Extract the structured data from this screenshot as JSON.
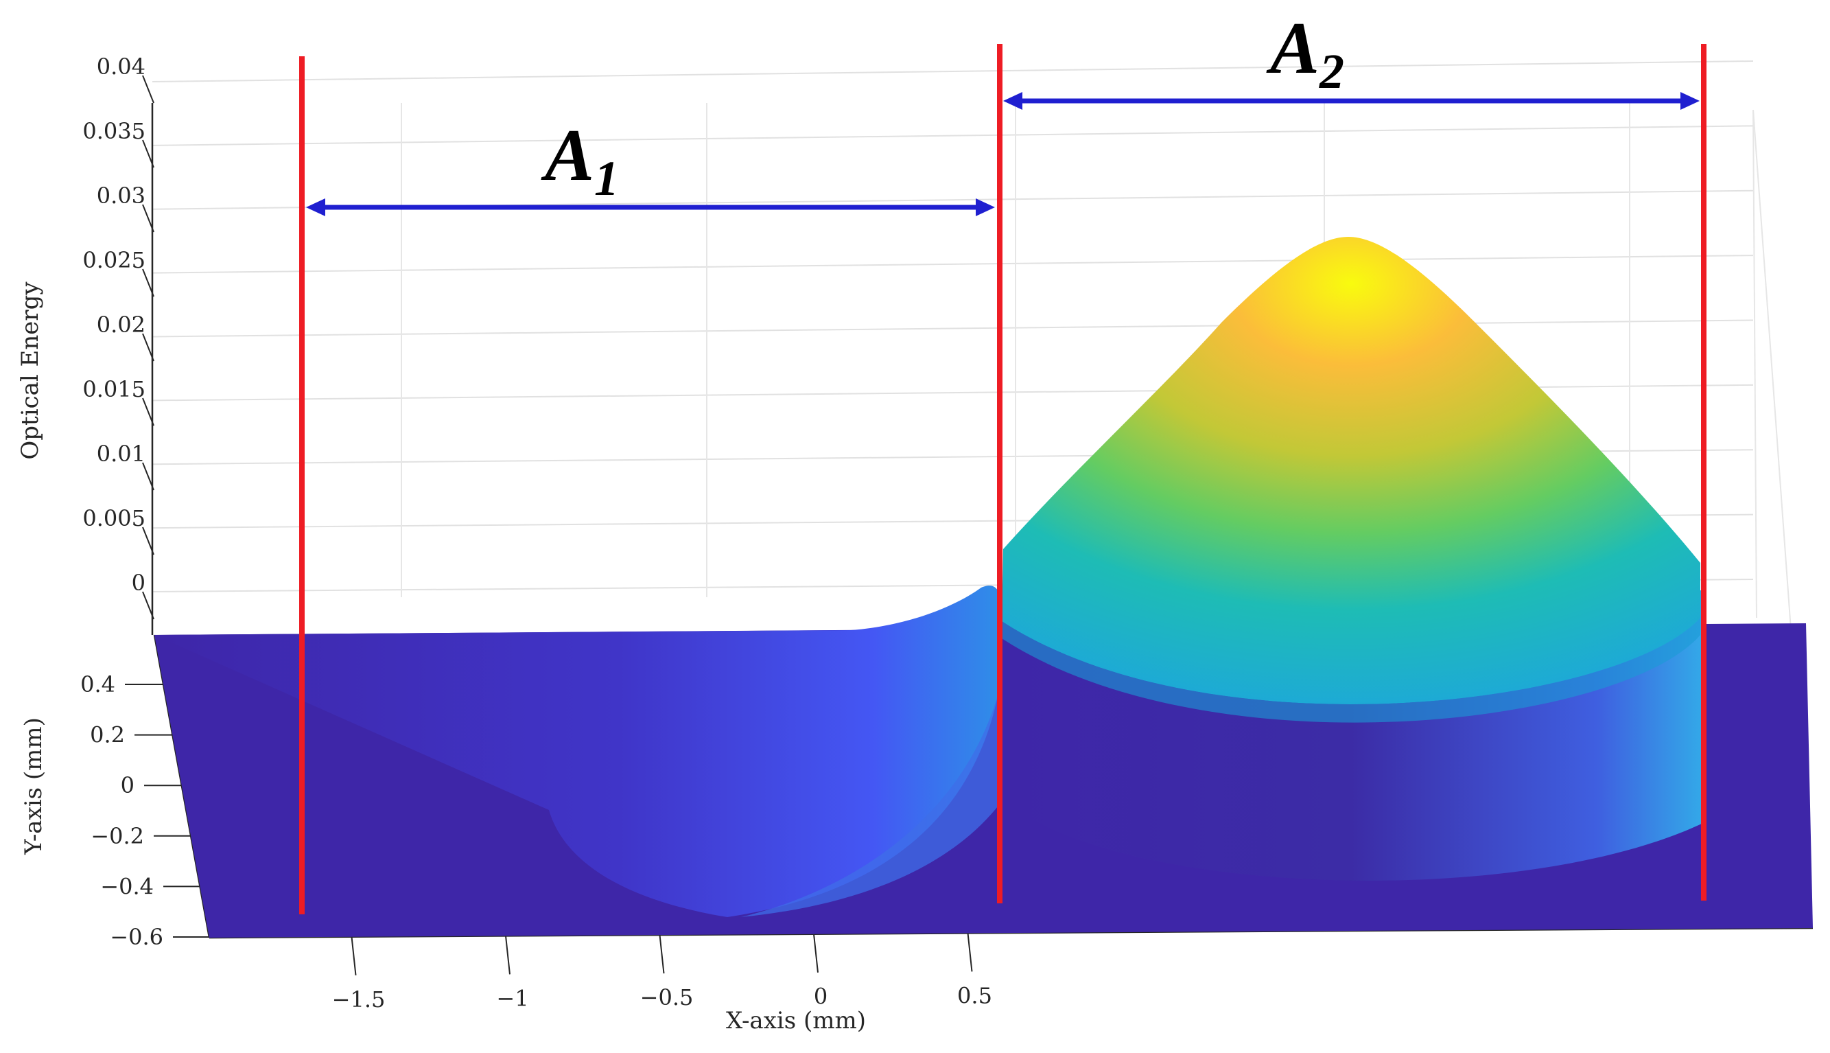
{
  "chart_data": {
    "type": "surface3d",
    "title": "",
    "xlabel": "X-axis (mm)",
    "ylabel": "Y-axis (mm)",
    "zlabel": "Optical Energy",
    "x_ticks": [
      -1.5,
      -1,
      -0.5,
      0,
      0.5
    ],
    "x_tick_labels": [
      "−1.5",
      "−1",
      "−0.5",
      "0",
      "0.5"
    ],
    "y_ticks": [
      0.4,
      0.2,
      0,
      -0.2,
      -0.4,
      -0.6
    ],
    "y_tick_labels": [
      "0.4",
      "0.2",
      "0",
      "−0.2",
      "−0.4",
      "−0.6"
    ],
    "z_ticks": [
      0.04,
      0.035,
      0.03,
      0.025,
      0.02,
      0.015,
      0.01,
      0.005,
      0
    ],
    "z_tick_labels": [
      "0.04",
      "0.035",
      "0.03",
      "0.025",
      "0.02",
      "0.015",
      "0.01",
      "0.005",
      "0"
    ],
    "zlim": [
      0,
      0.04
    ],
    "grid": true,
    "surfaces": [
      {
        "name": "",
        "center_x": -0.62,
        "peak_z": 0.001,
        "x_range": [
          -2.0,
          -0.62
        ]
      },
      {
        "name": "",
        "center_x": -0.05,
        "peak_z": 0.027,
        "x_range": [
          -0.62,
          0.51
        ]
      }
    ],
    "regions": [
      {
        "label": "A",
        "subscript": "1",
        "x_start": -1.75,
        "x_end": -0.62
      },
      {
        "label": "A",
        "subscript": "2",
        "x_start": -0.62,
        "x_end": 0.51
      }
    ],
    "colors": {
      "boundary_line": "#ee1c24",
      "arrow": "#1f1fd0",
      "floor": "#3e26a8",
      "peak": "#f9fb0e"
    }
  }
}
